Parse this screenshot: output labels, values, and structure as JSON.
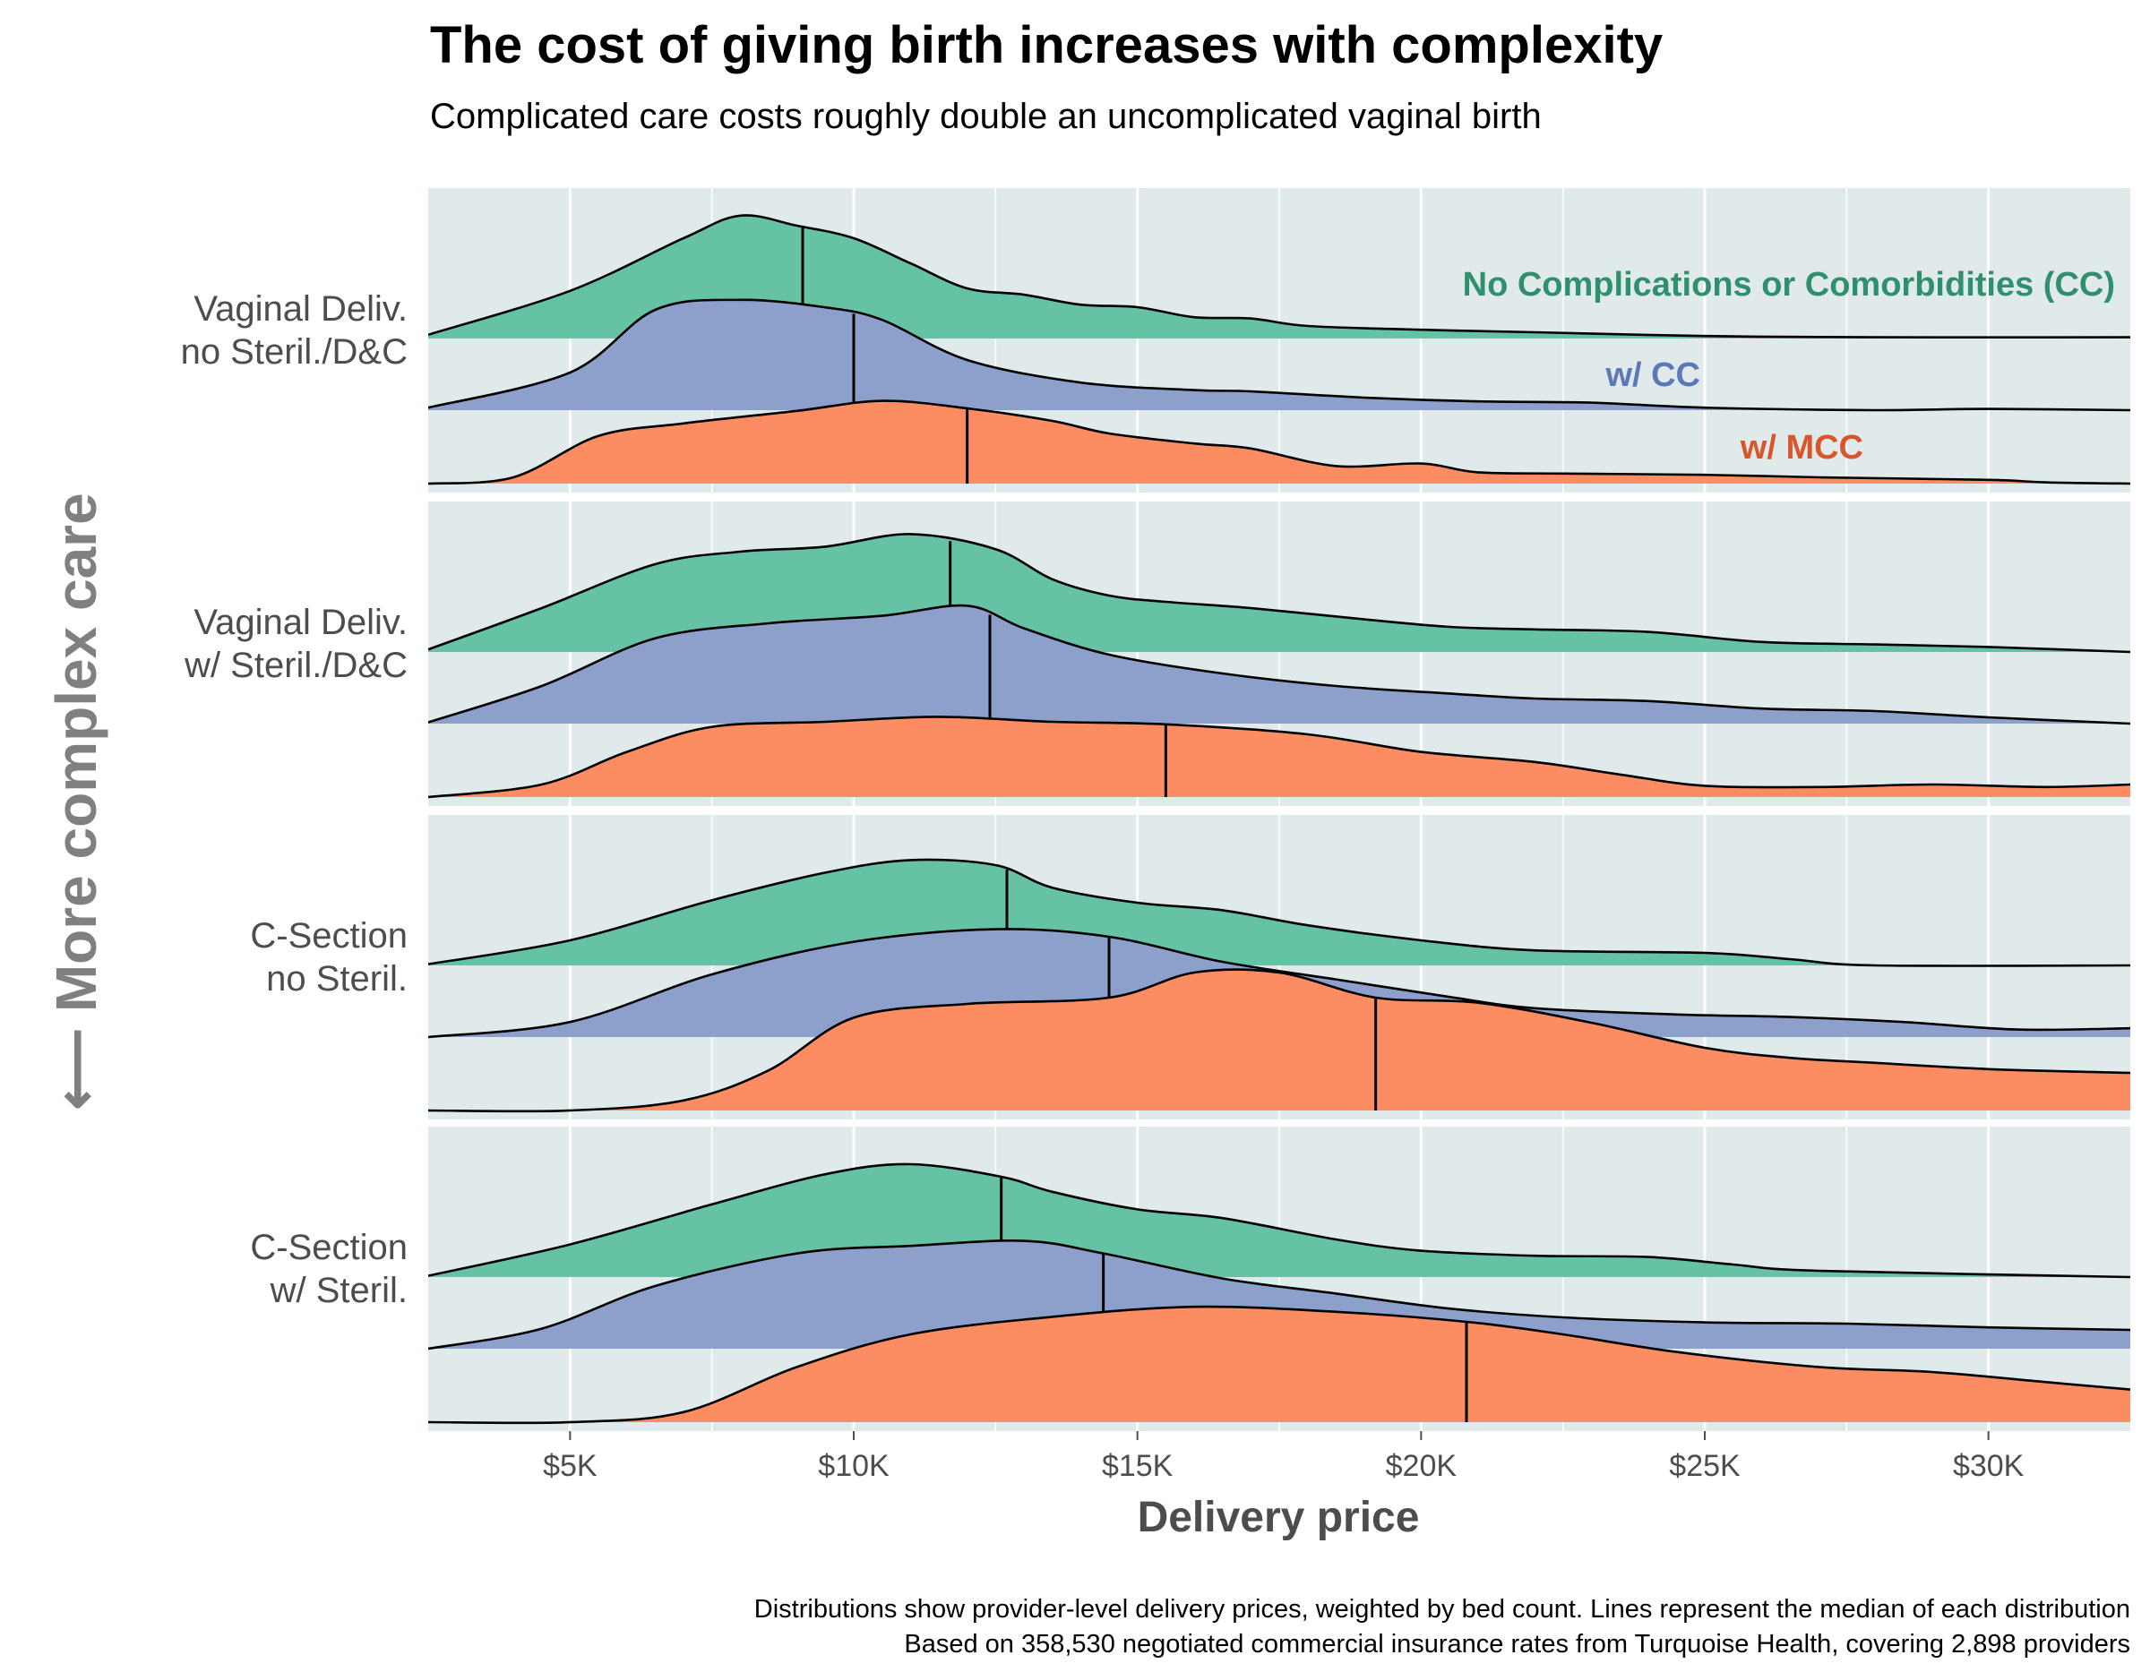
{
  "title": "The cost of giving birth increases with complexity",
  "subtitle": "Complicated care costs roughly double an uncomplicated vaginal birth",
  "side_axis_title": "⟵ More complex care",
  "caption": [
    "Distributions show provider-level delivery prices, weighted by bed count. Lines represent the median of each distribution",
    "Based on 358,530 negotiated commercial insurance rates from Turquoise Health, covering 2,898 providers"
  ],
  "colors": {
    "panel_bg": "#e0eaea",
    "no_cc": "#66c2a5",
    "cc": "#8da0cb",
    "mcc": "#fc8d62",
    "no_cc_text": "#2f8f6f",
    "cc_text": "#5b78b8",
    "mcc_text": "#d9562a",
    "grid": "#ffffff"
  },
  "chart_data": {
    "type": "area",
    "subtype": "ridgeline density",
    "xlabel": "Delivery price",
    "xlim": [
      2500,
      32500
    ],
    "x_ticks": [
      5000,
      10000,
      15000,
      20000,
      25000,
      30000
    ],
    "x_tick_labels": [
      "$5K",
      "$10K",
      "$15K",
      "$20K",
      "$25K",
      "$30K"
    ],
    "legend": [
      {
        "key": "no_cc",
        "label": "No Complications or Comorbidities (CC)"
      },
      {
        "key": "cc",
        "label": "w/ CC"
      },
      {
        "key": "mcc",
        "label": "w/ MCC"
      }
    ],
    "panels": [
      {
        "label_lines": [
          "Vaginal Deliv.",
          "no Steril./D&C"
        ],
        "series": [
          {
            "key": "no_cc",
            "median": 9100,
            "points": [
              [
                2500,
                0.03
              ],
              [
                5000,
                0.38
              ],
              [
                7000,
                0.8
              ],
              [
                8000,
                0.98
              ],
              [
                9000,
                0.9
              ],
              [
                10000,
                0.8
              ],
              [
                11000,
                0.6
              ],
              [
                12000,
                0.4
              ],
              [
                13000,
                0.35
              ],
              [
                14000,
                0.27
              ],
              [
                15000,
                0.25
              ],
              [
                16000,
                0.17
              ],
              [
                17000,
                0.16
              ],
              [
                18000,
                0.1
              ],
              [
                20000,
                0.07
              ],
              [
                22000,
                0.05
              ],
              [
                25000,
                0.02
              ],
              [
                28000,
                0.01
              ],
              [
                32500,
                0.01
              ]
            ]
          },
          {
            "key": "cc",
            "median": 10000,
            "points": [
              [
                2500,
                0.02
              ],
              [
                5000,
                0.3
              ],
              [
                6500,
                0.8
              ],
              [
                8000,
                0.88
              ],
              [
                9500,
                0.82
              ],
              [
                10500,
                0.72
              ],
              [
                12000,
                0.4
              ],
              [
                14000,
                0.22
              ],
              [
                16000,
                0.16
              ],
              [
                17000,
                0.15
              ],
              [
                19000,
                0.1
              ],
              [
                21000,
                0.07
              ],
              [
                23000,
                0.06
              ],
              [
                25000,
                0.02
              ],
              [
                28000,
                0.0
              ],
              [
                30000,
                0.01
              ],
              [
                32500,
                0.0
              ]
            ]
          },
          {
            "key": "mcc",
            "median": 12000,
            "points": [
              [
                2500,
                0.0
              ],
              [
                4000,
                0.05
              ],
              [
                5500,
                0.38
              ],
              [
                7000,
                0.48
              ],
              [
                9000,
                0.58
              ],
              [
                10500,
                0.66
              ],
              [
                12000,
                0.6
              ],
              [
                13500,
                0.5
              ],
              [
                14500,
                0.4
              ],
              [
                16000,
                0.32
              ],
              [
                17000,
                0.28
              ],
              [
                18500,
                0.14
              ],
              [
                20000,
                0.16
              ],
              [
                21000,
                0.09
              ],
              [
                22500,
                0.08
              ],
              [
                25000,
                0.07
              ],
              [
                27000,
                0.05
              ],
              [
                30000,
                0.03
              ],
              [
                31000,
                0.01
              ],
              [
                32500,
                0.0
              ]
            ]
          }
        ]
      },
      {
        "label_lines": [
          "Vaginal Deliv.",
          "w/ Steril./D&C"
        ],
        "series": [
          {
            "key": "no_cc",
            "median": 11700,
            "points": [
              [
                2500,
                0.02
              ],
              [
                4500,
                0.35
              ],
              [
                6500,
                0.7
              ],
              [
                8000,
                0.8
              ],
              [
                9500,
                0.84
              ],
              [
                11000,
                0.94
              ],
              [
                12500,
                0.82
              ],
              [
                13500,
                0.58
              ],
              [
                14500,
                0.45
              ],
              [
                15500,
                0.4
              ],
              [
                17000,
                0.35
              ],
              [
                19000,
                0.26
              ],
              [
                20500,
                0.2
              ],
              [
                22000,
                0.18
              ],
              [
                24000,
                0.16
              ],
              [
                26000,
                0.08
              ],
              [
                28000,
                0.06
              ],
              [
                30000,
                0.04
              ],
              [
                32500,
                0.0
              ]
            ]
          },
          {
            "key": "cc",
            "median": 12400,
            "points": [
              [
                2500,
                0.01
              ],
              [
                4500,
                0.3
              ],
              [
                6500,
                0.68
              ],
              [
                8500,
                0.8
              ],
              [
                10500,
                0.86
              ],
              [
                12000,
                0.94
              ],
              [
                13000,
                0.76
              ],
              [
                14500,
                0.55
              ],
              [
                16500,
                0.4
              ],
              [
                18500,
                0.3
              ],
              [
                20500,
                0.24
              ],
              [
                22000,
                0.2
              ],
              [
                24000,
                0.18
              ],
              [
                26000,
                0.12
              ],
              [
                28000,
                0.1
              ],
              [
                30000,
                0.05
              ],
              [
                32500,
                0.0
              ]
            ]
          },
          {
            "key": "mcc",
            "median": 15500,
            "points": [
              [
                2500,
                0.0
              ],
              [
                4500,
                0.1
              ],
              [
                6000,
                0.36
              ],
              [
                7500,
                0.56
              ],
              [
                9500,
                0.6
              ],
              [
                11500,
                0.64
              ],
              [
                13500,
                0.6
              ],
              [
                15500,
                0.58
              ],
              [
                18000,
                0.5
              ],
              [
                20000,
                0.36
              ],
              [
                22000,
                0.28
              ],
              [
                23500,
                0.18
              ],
              [
                25000,
                0.09
              ],
              [
                27000,
                0.08
              ],
              [
                29000,
                0.1
              ],
              [
                31000,
                0.08
              ],
              [
                32500,
                0.1
              ]
            ]
          }
        ]
      },
      {
        "label_lines": [
          "C-Section",
          "no Steril."
        ],
        "series": [
          {
            "key": "no_cc",
            "median": 12700,
            "points": [
              [
                2500,
                0.01
              ],
              [
                5000,
                0.2
              ],
              [
                7500,
                0.52
              ],
              [
                9500,
                0.74
              ],
              [
                11000,
                0.84
              ],
              [
                12500,
                0.8
              ],
              [
                13500,
                0.62
              ],
              [
                15000,
                0.5
              ],
              [
                16500,
                0.44
              ],
              [
                18000,
                0.32
              ],
              [
                20000,
                0.2
              ],
              [
                22000,
                0.12
              ],
              [
                25000,
                0.1
              ],
              [
                26500,
                0.05
              ],
              [
                28000,
                0.0
              ],
              [
                32500,
                0.0
              ]
            ]
          },
          {
            "key": "cc",
            "median": 14500,
            "points": [
              [
                2500,
                0.0
              ],
              [
                5000,
                0.12
              ],
              [
                7500,
                0.5
              ],
              [
                10000,
                0.76
              ],
              [
                12500,
                0.86
              ],
              [
                14500,
                0.8
              ],
              [
                16500,
                0.6
              ],
              [
                18500,
                0.46
              ],
              [
                20500,
                0.32
              ],
              [
                22000,
                0.23
              ],
              [
                24500,
                0.18
              ],
              [
                26500,
                0.16
              ],
              [
                28500,
                0.12
              ],
              [
                30500,
                0.06
              ],
              [
                32500,
                0.07
              ]
            ]
          },
          {
            "key": "mcc",
            "median": 19200,
            "points": [
              [
                2500,
                0.0
              ],
              [
                5000,
                0.0
              ],
              [
                7000,
                0.08
              ],
              [
                8500,
                0.32
              ],
              [
                10000,
                0.74
              ],
              [
                12000,
                0.85
              ],
              [
                14500,
                0.9
              ],
              [
                16000,
                1.1
              ],
              [
                17500,
                1.1
              ],
              [
                19200,
                0.9
              ],
              [
                21000,
                0.86
              ],
              [
                23000,
                0.7
              ],
              [
                25000,
                0.5
              ],
              [
                26500,
                0.42
              ],
              [
                28000,
                0.38
              ],
              [
                30000,
                0.33
              ],
              [
                32500,
                0.3
              ]
            ]
          }
        ]
      },
      {
        "label_lines": [
          "C-Section",
          "w/ Steril."
        ],
        "series": [
          {
            "key": "no_cc",
            "median": 12600,
            "points": [
              [
                2500,
                0.01
              ],
              [
                5000,
                0.26
              ],
              [
                7500,
                0.58
              ],
              [
                9500,
                0.82
              ],
              [
                11000,
                0.9
              ],
              [
                12600,
                0.8
              ],
              [
                13500,
                0.68
              ],
              [
                15000,
                0.54
              ],
              [
                16500,
                0.47
              ],
              [
                18500,
                0.3
              ],
              [
                20000,
                0.21
              ],
              [
                22000,
                0.17
              ],
              [
                24000,
                0.16
              ],
              [
                25500,
                0.1
              ],
              [
                27000,
                0.05
              ],
              [
                32500,
                0.0
              ]
            ]
          },
          {
            "key": "cc",
            "median": 14400,
            "points": [
              [
                2500,
                0.0
              ],
              [
                4500,
                0.16
              ],
              [
                6500,
                0.5
              ],
              [
                9000,
                0.76
              ],
              [
                11000,
                0.82
              ],
              [
                13000,
                0.86
              ],
              [
                14400,
                0.76
              ],
              [
                16500,
                0.56
              ],
              [
                18500,
                0.44
              ],
              [
                20500,
                0.32
              ],
              [
                22500,
                0.25
              ],
              [
                25000,
                0.21
              ],
              [
                27500,
                0.2
              ],
              [
                30000,
                0.17
              ],
              [
                32500,
                0.15
              ]
            ]
          },
          {
            "key": "mcc",
            "median": 20800,
            "points": [
              [
                2500,
                0.0
              ],
              [
                5000,
                0.0
              ],
              [
                7000,
                0.08
              ],
              [
                9000,
                0.44
              ],
              [
                11000,
                0.7
              ],
              [
                13500,
                0.84
              ],
              [
                16000,
                0.92
              ],
              [
                18500,
                0.88
              ],
              [
                20800,
                0.8
              ],
              [
                22500,
                0.7
              ],
              [
                24500,
                0.56
              ],
              [
                27000,
                0.44
              ],
              [
                29000,
                0.4
              ],
              [
                31000,
                0.32
              ],
              [
                32500,
                0.26
              ]
            ]
          }
        ]
      }
    ]
  }
}
